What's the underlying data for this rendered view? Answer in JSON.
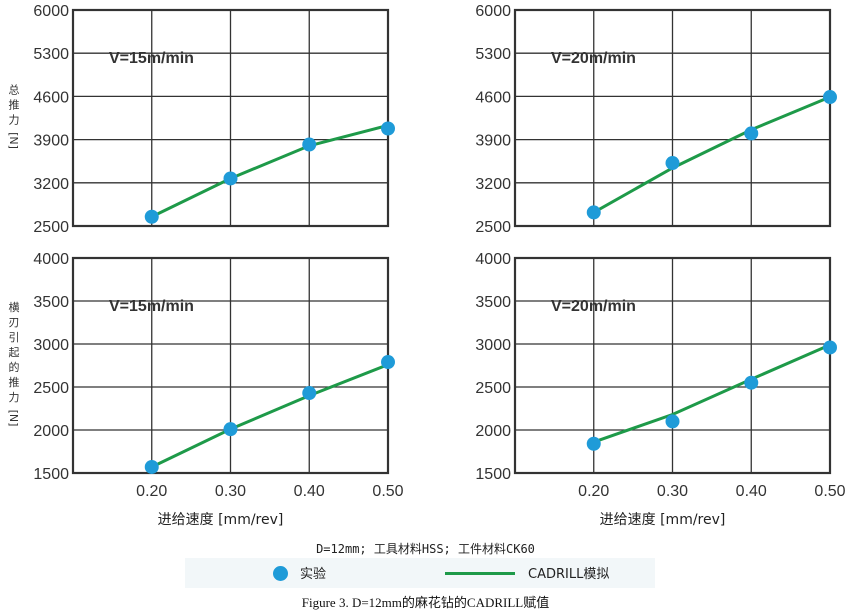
{
  "chart_data": [
    {
      "type": "line",
      "annotation": "V=15m/min",
      "ylabel": "总推力[N]",
      "ylim": [
        2500,
        6000
      ],
      "yticks": [
        "2500",
        "3200",
        "3900",
        "4600",
        "5300",
        "6000"
      ],
      "x": [
        0.2,
        0.3,
        0.4,
        0.5
      ],
      "series": [
        {
          "name": "实验",
          "style": "points",
          "values": [
            2650,
            3270,
            3820,
            4080
          ]
        },
        {
          "name": "CADRILL模拟",
          "style": "line",
          "values": [
            2650,
            3270,
            3800,
            4130
          ]
        }
      ]
    },
    {
      "type": "line",
      "annotation": "V=20m/min",
      "ylim": [
        2500,
        6000
      ],
      "yticks": [
        "2500",
        "3200",
        "3900",
        "4600",
        "5300",
        "6000"
      ],
      "x": [
        0.2,
        0.3,
        0.4,
        0.5
      ],
      "series": [
        {
          "name": "实验",
          "style": "points",
          "values": [
            2720,
            3520,
            4000,
            4590
          ]
        },
        {
          "name": "CADRILL模拟",
          "style": "line",
          "values": [
            2720,
            3440,
            4060,
            4590
          ]
        }
      ]
    },
    {
      "type": "line",
      "annotation": "V=15m/min",
      "ylabel": "横刃引起的推力[N]",
      "ylim": [
        1500,
        4000
      ],
      "yticks": [
        "1500",
        "2000",
        "2500",
        "3000",
        "3500",
        "4000"
      ],
      "xticks": [
        "0.20",
        "0.30",
        "0.40",
        "0.50"
      ],
      "xlabel": "进给速度 [mm/rev]",
      "x": [
        0.2,
        0.3,
        0.4,
        0.5
      ],
      "series": [
        {
          "name": "实验",
          "style": "points",
          "values": [
            1570,
            2010,
            2430,
            2790
          ]
        },
        {
          "name": "CADRILL模拟",
          "style": "line",
          "values": [
            1570,
            2010,
            2400,
            2760
          ]
        }
      ]
    },
    {
      "type": "line",
      "annotation": "V=20m/min",
      "yticks": [
        "1500",
        "2000",
        "2500",
        "3000",
        "3500",
        "4000"
      ],
      "ylim": [
        1500,
        4000
      ],
      "xticks": [
        "0.20",
        "0.30",
        "0.40",
        "0.50"
      ],
      "xlabel": "进给速度 [mm/rev]",
      "x": [
        0.2,
        0.3,
        0.4,
        0.5
      ],
      "series": [
        {
          "name": "实验",
          "style": "points",
          "values": [
            1840,
            2100,
            2550,
            2960
          ]
        },
        {
          "name": "CADRILL模拟",
          "style": "line",
          "values": [
            1860,
            2180,
            2590,
            2990
          ]
        }
      ]
    }
  ],
  "conditions": "D=12mm; 工具材料HSS; 工件材料CK60",
  "legend": {
    "experiment": "实验",
    "simulation": "CADRILL模拟"
  },
  "caption": "Figure 3. D=12mm的麻花钻的CADRILL赋值",
  "colors": {
    "point": "#1f9bd8",
    "line": "#1e9a49",
    "axis": "#333333"
  },
  "xlim": [
    0.1,
    0.5
  ]
}
